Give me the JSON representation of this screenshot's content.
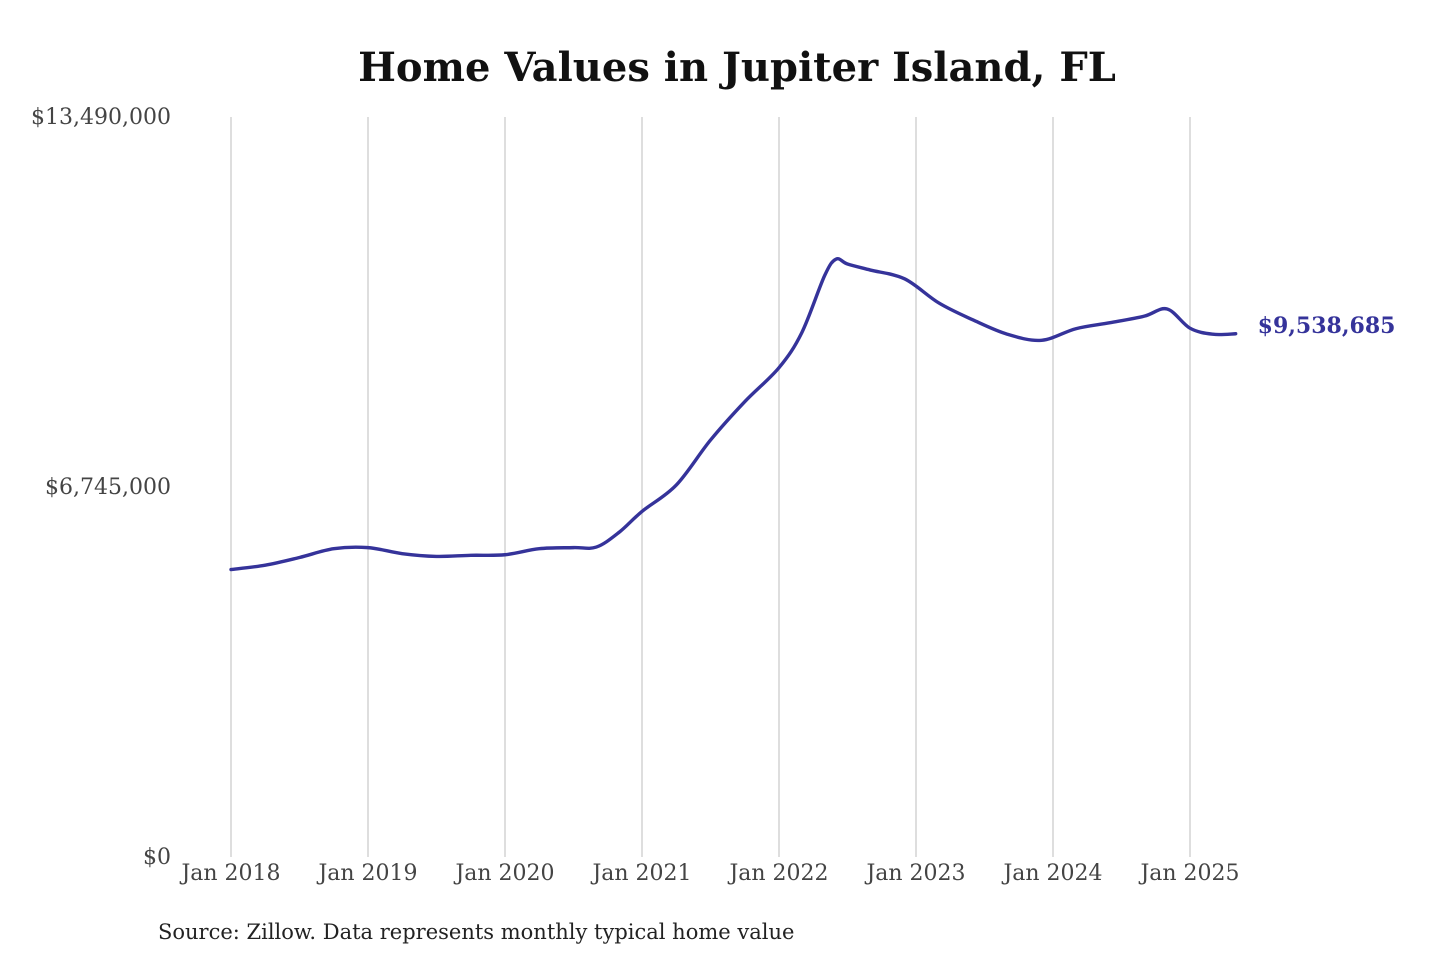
{
  "chart_data": {
    "type": "line",
    "title": "Home Values in Jupiter Island, FL",
    "xlabel": "",
    "ylabel": "",
    "ylim": [
      0,
      13490000
    ],
    "y_ticks": [
      {
        "value": 0,
        "label": "$0"
      },
      {
        "value": 6745000,
        "label": "$6,745,000"
      },
      {
        "value": 13490000,
        "label": "$13,490,000"
      }
    ],
    "x_ticks": [
      {
        "value": "2018-01",
        "label": "Jan 2018"
      },
      {
        "value": "2019-01",
        "label": "Jan 2019"
      },
      {
        "value": "2020-01",
        "label": "Jan 2020"
      },
      {
        "value": "2021-01",
        "label": "Jan 2021"
      },
      {
        "value": "2022-01",
        "label": "Jan 2022"
      },
      {
        "value": "2023-01",
        "label": "Jan 2023"
      },
      {
        "value": "2024-01",
        "label": "Jan 2024"
      },
      {
        "value": "2025-01",
        "label": "Jan 2025"
      }
    ],
    "grid": {
      "vertical": true,
      "horizontal": false
    },
    "series": [
      {
        "color": "#35339a",
        "end_label": "$9,538,685",
        "points": [
          {
            "x": "2018-01",
            "y": 5240000
          },
          {
            "x": "2018-04",
            "y": 5320000
          },
          {
            "x": "2018-07",
            "y": 5460000
          },
          {
            "x": "2018-10",
            "y": 5620000
          },
          {
            "x": "2019-01",
            "y": 5640000
          },
          {
            "x": "2019-04",
            "y": 5530000
          },
          {
            "x": "2019-07",
            "y": 5480000
          },
          {
            "x": "2019-10",
            "y": 5500000
          },
          {
            "x": "2020-01",
            "y": 5510000
          },
          {
            "x": "2020-04",
            "y": 5620000
          },
          {
            "x": "2020-07",
            "y": 5640000
          },
          {
            "x": "2020-09",
            "y": 5650000
          },
          {
            "x": "2020-11",
            "y": 5920000
          },
          {
            "x": "2021-01",
            "y": 6300000
          },
          {
            "x": "2021-04",
            "y": 6780000
          },
          {
            "x": "2021-07",
            "y": 7600000
          },
          {
            "x": "2021-10",
            "y": 8300000
          },
          {
            "x": "2022-01",
            "y": 8920000
          },
          {
            "x": "2022-03",
            "y": 9560000
          },
          {
            "x": "2022-05",
            "y": 10600000
          },
          {
            "x": "2022-06",
            "y": 10900000
          },
          {
            "x": "2022-07",
            "y": 10810000
          },
          {
            "x": "2022-09",
            "y": 10700000
          },
          {
            "x": "2022-12",
            "y": 10540000
          },
          {
            "x": "2023-03",
            "y": 10100000
          },
          {
            "x": "2023-06",
            "y": 9790000
          },
          {
            "x": "2023-09",
            "y": 9530000
          },
          {
            "x": "2023-12",
            "y": 9420000
          },
          {
            "x": "2024-03",
            "y": 9630000
          },
          {
            "x": "2024-06",
            "y": 9740000
          },
          {
            "x": "2024-09",
            "y": 9860000
          },
          {
            "x": "2024-11",
            "y": 9990000
          },
          {
            "x": "2025-01",
            "y": 9640000
          },
          {
            "x": "2025-03",
            "y": 9530000
          },
          {
            "x": "2025-05",
            "y": 9538685
          }
        ]
      }
    ],
    "source": "Source: Zillow. Data represents monthly typical home value"
  }
}
